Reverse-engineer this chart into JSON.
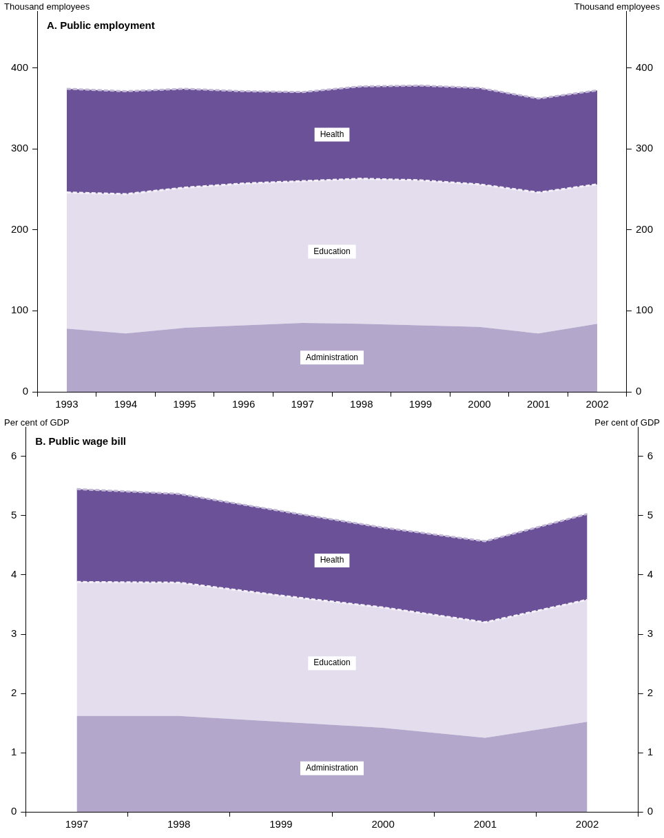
{
  "chart_data": [
    {
      "type": "area",
      "title": "A. Public employment",
      "ylabel": "Thousand employees",
      "y2label": "Thousand employees",
      "stacked": true,
      "legend": false,
      "grid": false,
      "line_style": "dashed",
      "categories": [
        "1993",
        "1994",
        "1995",
        "1996",
        "1997",
        "1998",
        "1999",
        "2000",
        "2001",
        "2002"
      ],
      "ylim": [
        0,
        470
      ],
      "yticks": [
        0,
        100,
        200,
        300,
        400
      ],
      "y2lim": [
        0,
        470
      ],
      "y2ticks": [
        0,
        100,
        200,
        300,
        400
      ],
      "series": [
        {
          "name": "Administration",
          "color": "#b3a7cc",
          "values": [
            78,
            72,
            79,
            82,
            85,
            84,
            82,
            80,
            72,
            84
          ]
        },
        {
          "name": "Education",
          "color": "#e3dded",
          "values": [
            168,
            172,
            173,
            175,
            175,
            179,
            179,
            176,
            174,
            172
          ]
        },
        {
          "name": "Health",
          "color": "#6a5198",
          "values": [
            128,
            127,
            122,
            114,
            110,
            114,
            117,
            119,
            116,
            116
          ]
        }
      ]
    },
    {
      "type": "area",
      "title": "B. Public wage bill",
      "ylabel": "Per cent of GDP",
      "y2label": "Per cent of GDP",
      "stacked": true,
      "legend": false,
      "grid": false,
      "line_style": "dashed",
      "categories": [
        "1997",
        "1998",
        "1999",
        "2000",
        "2001",
        "2002"
      ],
      "ylim": [
        0,
        6.5
      ],
      "yticks": [
        0,
        1,
        2,
        3,
        4,
        5,
        6
      ],
      "y2lim": [
        0,
        6.5
      ],
      "y2ticks": [
        0,
        1,
        2,
        3,
        4,
        5,
        6
      ],
      "series": [
        {
          "name": "Administration",
          "color": "#b3a7cc",
          "values": [
            1.62,
            1.62,
            1.52,
            1.42,
            1.25,
            1.52
          ]
        },
        {
          "name": "Education",
          "color": "#e3dded",
          "values": [
            2.26,
            2.25,
            2.13,
            2.03,
            1.95,
            2.06
          ]
        },
        {
          "name": "Health",
          "color": "#6a5198",
          "values": [
            1.57,
            1.5,
            1.43,
            1.35,
            1.37,
            1.45
          ]
        }
      ]
    }
  ]
}
